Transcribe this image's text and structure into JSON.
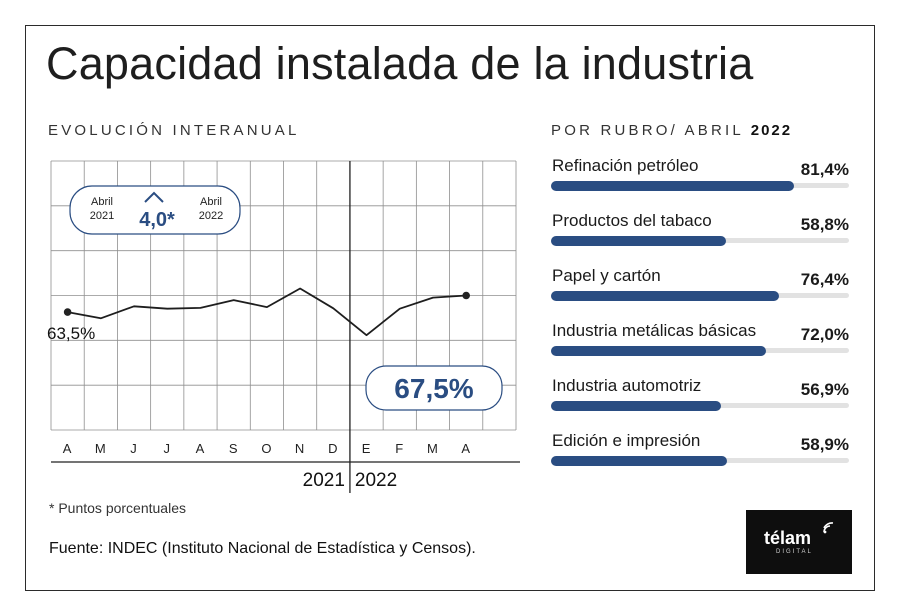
{
  "title": "Capacidad instalada de la industria",
  "left_subtitle": "EVOLUCIÓN INTERANUAL",
  "right_subtitle_prefix": "POR RUBRO/ ABRIL",
  "right_subtitle_year": "2022",
  "footnote": "* Puntos porcentuales",
  "source": "Fuente: INDEC (Instituto Nacional de Estadística y Censos).",
  "logo": {
    "word": "télam",
    "sub": "DIGITAL"
  },
  "colors": {
    "accent": "#2a4d82",
    "line": "#1e1e1e",
    "grid": "#8f8f8f"
  },
  "chart_data": [
    {
      "type": "line",
      "categories": [
        "A",
        "M",
        "J",
        "J",
        "A",
        "S",
        "O",
        "N",
        "D",
        "E",
        "F",
        "M",
        "A"
      ],
      "series": [
        {
          "values": [
            63.5,
            62.0,
            64.9,
            64.3,
            64.5,
            66.4,
            64.7,
            69.2,
            64.4,
            57.9,
            64.3,
            67.0,
            67.5
          ]
        }
      ],
      "year_labels": [
        "2021",
        "2022"
      ],
      "start_label": "63,5%",
      "end_label": "67,5%",
      "change_box": {
        "from_label": "Abril\n2021",
        "value": "4,0*",
        "to_label": "Abril\n2022"
      },
      "title": "",
      "xlabel": "",
      "ylabel": "",
      "ylim": [
        35,
        100
      ],
      "grid": true
    },
    {
      "type": "bar",
      "orientation": "horizontal",
      "categories": [
        "Refinación petróleo",
        "Productos del tabaco",
        "Papel y cartón",
        "Industria metálicas básicas",
        "Industria automotriz",
        "Edición e impresión"
      ],
      "values": [
        81.4,
        58.8,
        76.4,
        72.0,
        56.9,
        58.9
      ],
      "value_labels": [
        "81,4%",
        "58,8%",
        "76,4%",
        "72,0%",
        "56,9%",
        "58,9%"
      ],
      "xlim": [
        0,
        100
      ]
    }
  ]
}
